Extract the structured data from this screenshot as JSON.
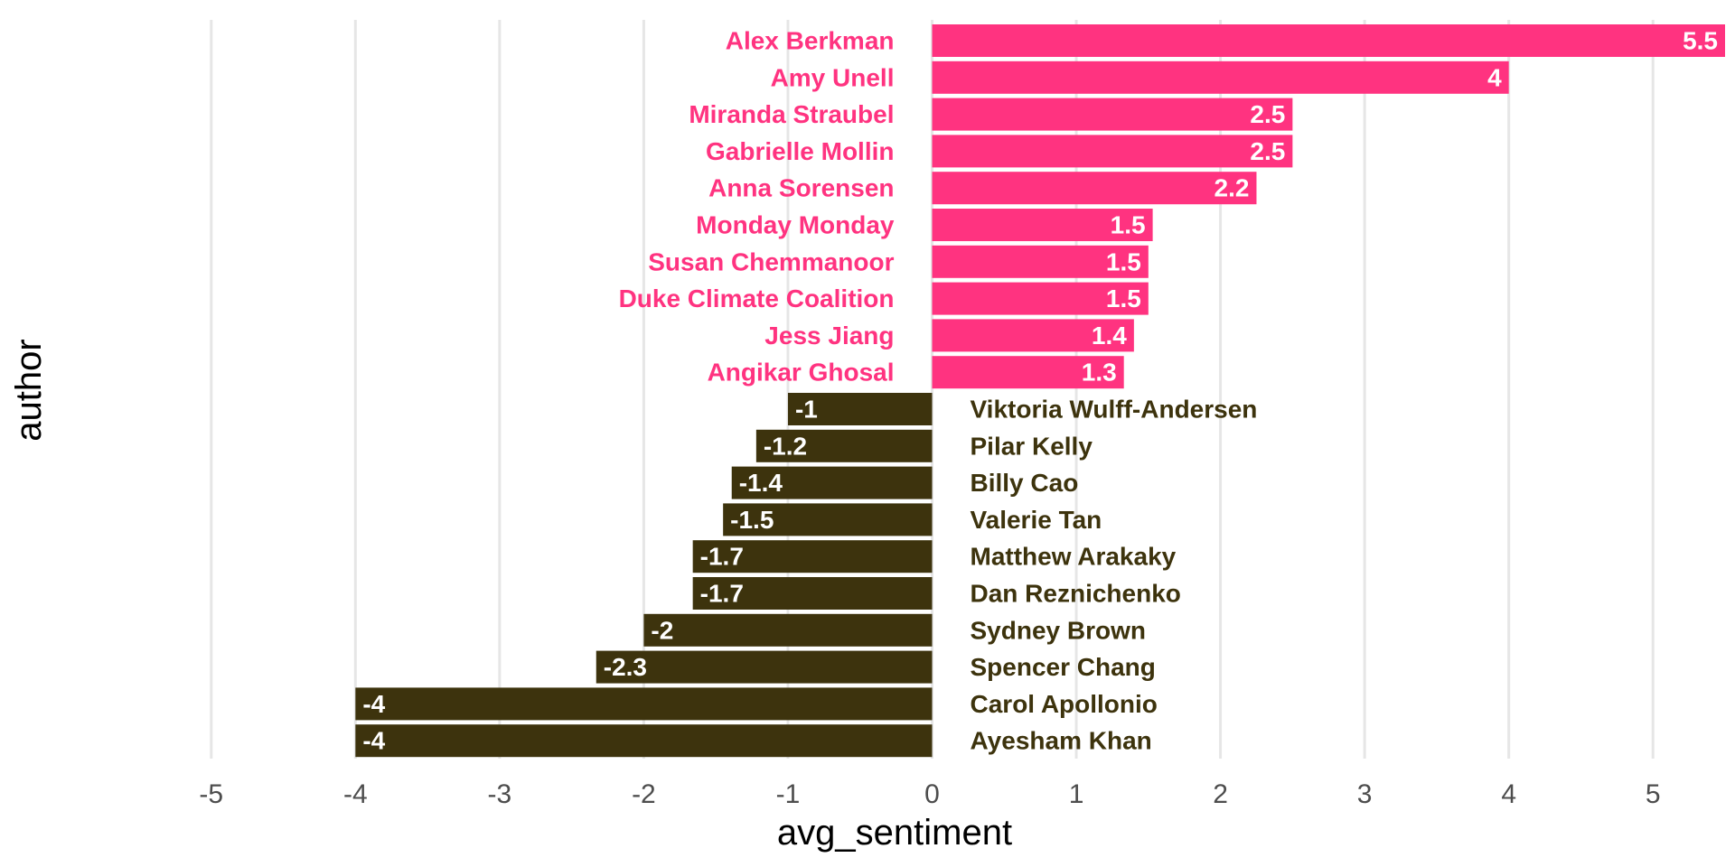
{
  "chart_data": {
    "type": "bar",
    "orientation": "horizontal",
    "xlabel": "avg_sentiment",
    "ylabel": "author",
    "xlim": [
      -5.5,
      5.5
    ],
    "xticks": [
      -5,
      -4,
      -3,
      -2,
      -1,
      0,
      1,
      2,
      3,
      4,
      5
    ],
    "grid": true,
    "colors": {
      "positive": "#ff3380",
      "negative": "#3d330d",
      "grid": "#e6e6e6",
      "tick_text": "#4d4d4d",
      "value_text": "#ffffff"
    },
    "categories": [
      "Alex Berkman",
      "Amy Unell",
      "Miranda Straubel",
      "Gabrielle Mollin",
      "Anna Sorensen",
      "Monday Monday",
      "Susan Chemmanoor",
      "Duke Climate Coalition",
      "Jess Jiang",
      "Angikar Ghosal",
      "Viktoria Wulff-Andersen",
      "Pilar Kelly",
      "Billy Cao",
      "Valerie Tan",
      "Matthew Arakaky",
      "Dan Reznichenko",
      "Sydney Brown",
      "Spencer Chang",
      "Carol Apollonio",
      "Ayesham Khan"
    ],
    "values": [
      5.5,
      4.0,
      2.5,
      2.5,
      2.25,
      1.53,
      1.5,
      1.5,
      1.4,
      1.33,
      -1.0,
      -1.22,
      -1.39,
      -1.45,
      -1.66,
      -1.66,
      -2.0,
      -2.33,
      -4.0,
      -4.0
    ],
    "value_labels": [
      "5.5",
      "4",
      "2.5",
      "2.5",
      "2.2",
      "1.5",
      "1.5",
      "1.5",
      "1.4",
      "1.3",
      "-1",
      "-1.2",
      "-1.4",
      "-1.5",
      "-1.7",
      "-1.7",
      "-2",
      "-2.3",
      "-4",
      "-4"
    ]
  }
}
